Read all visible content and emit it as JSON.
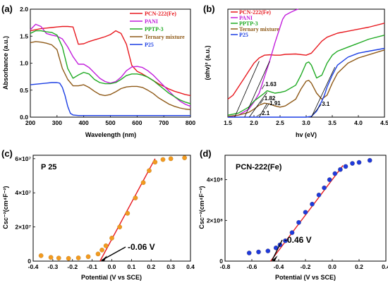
{
  "colors": {
    "pcn": "#e8191f",
    "pani": "#c21fdc",
    "pptp": "#1faa23",
    "ternary": "#8f5a18",
    "p25": "#1c3fe4",
    "dot": "#f29a1f",
    "dot_blue": "#1e3adc",
    "fit": "#e8191f"
  },
  "chart_data": [
    {
      "panel": "(a)",
      "type": "line",
      "xlabel": "Wavelength (nm)",
      "ylabel": "Absorbance (a.u.)",
      "xlim": [
        200,
        800
      ],
      "ylim": [
        0,
        2.0
      ],
      "x_ticks": [
        "200",
        "300",
        "400",
        "500",
        "600",
        "700",
        "800"
      ],
      "y_ticks": [
        "0.0",
        "0.5",
        "1.0",
        "1.5",
        "2.0"
      ],
      "legend_position": "top-right",
      "series": [
        {
          "name": "PCN-222(Fe)",
          "color_key": "pcn",
          "x": [
            200,
            220,
            240,
            260,
            280,
            300,
            320,
            340,
            360,
            380,
            400,
            420,
            440,
            460,
            480,
            500,
            520,
            540,
            560,
            580,
            600,
            620,
            640,
            660,
            680,
            700,
            720,
            740,
            760,
            780,
            800
          ],
          "y": [
            1.6,
            1.62,
            1.64,
            1.65,
            1.66,
            1.67,
            1.68,
            1.68,
            1.67,
            1.35,
            1.36,
            1.4,
            1.43,
            1.46,
            1.49,
            1.53,
            1.6,
            1.55,
            1.35,
            0.96,
            0.85,
            0.8,
            0.74,
            0.68,
            0.62,
            0.57,
            0.52,
            0.48,
            0.45,
            0.42,
            0.4
          ]
        },
        {
          "name": "PANI",
          "color_key": "pani",
          "x": [
            200,
            220,
            240,
            260,
            280,
            300,
            320,
            340,
            360,
            380,
            400,
            420,
            440,
            460,
            480,
            500,
            520,
            540,
            560,
            580,
            600,
            620,
            640,
            660,
            680,
            700,
            720,
            740,
            760,
            780,
            800
          ],
          "y": [
            1.62,
            1.72,
            1.68,
            1.55,
            1.52,
            1.5,
            1.45,
            1.3,
            1.12,
            0.98,
            0.98,
            0.92,
            0.82,
            0.72,
            0.66,
            0.63,
            0.66,
            0.74,
            0.86,
            0.93,
            0.94,
            0.92,
            0.86,
            0.78,
            0.68,
            0.58,
            0.48,
            0.38,
            0.3,
            0.24,
            0.2
          ]
        },
        {
          "name": "PPTP-3",
          "color_key": "pptp",
          "x": [
            200,
            220,
            240,
            260,
            280,
            300,
            320,
            340,
            360,
            380,
            400,
            420,
            440,
            460,
            480,
            500,
            520,
            540,
            560,
            580,
            600,
            620,
            640,
            660,
            680,
            700,
            720,
            740,
            760,
            780,
            800
          ],
          "y": [
            1.55,
            1.6,
            1.6,
            1.58,
            1.57,
            1.52,
            1.3,
            0.9,
            0.72,
            0.78,
            0.83,
            0.8,
            0.7,
            0.64,
            0.62,
            0.62,
            0.64,
            0.7,
            0.77,
            0.8,
            0.8,
            0.78,
            0.74,
            0.68,
            0.6,
            0.52,
            0.44,
            0.38,
            0.32,
            0.28,
            0.25
          ]
        },
        {
          "name": "Ternary mixture",
          "color_key": "ternary",
          "x": [
            200,
            220,
            240,
            260,
            280,
            300,
            320,
            340,
            360,
            380,
            400,
            420,
            440,
            460,
            480,
            500,
            520,
            540,
            560,
            580,
            600,
            620,
            640,
            660,
            680,
            700,
            720,
            740,
            760,
            780,
            800
          ],
          "y": [
            1.38,
            1.4,
            1.39,
            1.37,
            1.34,
            1.25,
            0.9,
            0.7,
            0.58,
            0.58,
            0.6,
            0.55,
            0.48,
            0.42,
            0.4,
            0.42,
            0.47,
            0.53,
            0.56,
            0.57,
            0.57,
            0.55,
            0.5,
            0.44,
            0.36,
            0.3,
            0.24,
            0.2,
            0.17,
            0.15,
            0.14
          ]
        },
        {
          "name": "P25",
          "color_key": "p25",
          "x": [
            200,
            220,
            240,
            260,
            280,
            300,
            310,
            320,
            330,
            340,
            350,
            360,
            380,
            400,
            450,
            500,
            600,
            700,
            800
          ],
          "y": [
            0.6,
            0.61,
            0.62,
            0.63,
            0.64,
            0.64,
            0.63,
            0.55,
            0.4,
            0.2,
            0.07,
            0.04,
            0.03,
            0.03,
            0.03,
            0.03,
            0.03,
            0.03,
            0.03
          ]
        }
      ]
    },
    {
      "panel": "(b)",
      "type": "line",
      "xlabel": "hv (eV)",
      "ylabel": "(αhv)² (a.u.)",
      "xlim": [
        1.5,
        4.5
      ],
      "ylim": [
        0,
        2.7
      ],
      "x_ticks": [
        "1.5",
        "2.0",
        "2.5",
        "3.0",
        "3.5",
        "4.0",
        "4.5"
      ],
      "legend_position": "top-left",
      "annotations": [
        "1.63",
        "1.82",
        "1.91",
        "2.1",
        "3.1"
      ],
      "series": [
        {
          "name": "PCN-222(Fe)",
          "color_key": "pcn",
          "x": [
            1.5,
            1.6,
            1.7,
            1.8,
            1.9,
            2.0,
            2.1,
            2.2,
            2.3,
            2.4,
            2.5,
            2.6,
            2.8,
            3.0,
            3.1,
            3.2,
            3.3,
            3.4,
            3.6,
            3.8,
            4.0,
            4.2,
            4.5
          ],
          "y": [
            0.45,
            0.55,
            0.75,
            0.95,
            1.15,
            1.35,
            1.48,
            1.55,
            1.56,
            1.55,
            1.55,
            1.57,
            1.58,
            1.55,
            1.6,
            1.75,
            1.9,
            2.0,
            2.1,
            2.15,
            2.2,
            2.25,
            2.35
          ]
        },
        {
          "name": "PANI",
          "color_key": "pani",
          "x": [
            1.5,
            1.7,
            1.9,
            2.0,
            2.1,
            2.2,
            2.3,
            2.4,
            2.5,
            2.55,
            2.6,
            2.7,
            2.8,
            2.85
          ],
          "y": [
            0.0,
            0.05,
            0.2,
            0.38,
            0.6,
            1.0,
            1.4,
            1.85,
            2.25,
            2.45,
            2.55,
            2.62,
            2.68,
            2.7
          ]
        },
        {
          "name": "PPTP-3",
          "color_key": "pptp",
          "x": [
            1.5,
            1.7,
            1.9,
            2.0,
            2.1,
            2.2,
            2.25,
            2.3,
            2.4,
            2.5,
            2.6,
            2.8,
            2.9,
            3.0,
            3.05,
            3.1,
            3.2,
            3.3,
            3.4,
            3.5,
            3.6,
            3.8,
            4.0,
            4.2,
            4.5
          ],
          "y": [
            0.05,
            0.1,
            0.25,
            0.4,
            0.5,
            0.6,
            0.66,
            0.64,
            0.6,
            0.62,
            0.65,
            0.8,
            1.05,
            1.35,
            1.38,
            1.3,
            0.98,
            1.05,
            1.35,
            1.55,
            1.65,
            1.75,
            1.85,
            1.95,
            2.05
          ]
        },
        {
          "name": "Ternary mixture",
          "color_key": "ternary",
          "x": [
            1.5,
            1.7,
            1.9,
            2.0,
            2.1,
            2.2,
            2.3,
            2.4,
            2.5,
            2.6,
            2.8,
            2.9,
            3.0,
            3.05,
            3.1,
            3.2,
            3.3,
            3.4,
            3.5,
            3.6,
            3.8,
            4.0,
            4.2,
            4.5
          ],
          "y": [
            0.02,
            0.05,
            0.12,
            0.2,
            0.3,
            0.35,
            0.33,
            0.28,
            0.25,
            0.28,
            0.45,
            0.7,
            0.9,
            0.92,
            0.85,
            0.6,
            0.45,
            0.55,
            0.85,
            1.1,
            1.35,
            1.48,
            1.56,
            1.68
          ]
        },
        {
          "name": "P25",
          "color_key": "p25",
          "x": [
            1.5,
            2.0,
            2.5,
            3.0,
            3.1,
            3.2,
            3.3,
            3.35,
            3.4,
            3.5,
            3.6,
            3.8,
            4.0,
            4.2,
            4.5
          ],
          "y": [
            0.0,
            0.0,
            0.0,
            0.0,
            0.02,
            0.15,
            0.4,
            0.55,
            0.75,
            1.05,
            1.3,
            1.5,
            1.6,
            1.65,
            1.72
          ]
        }
      ]
    },
    {
      "panel": "(c)",
      "type": "scatter",
      "title": "P 25",
      "xlabel": "Potential (V vs SCE)",
      "ylabel": "Csc⁻²(cm⁴F⁻²)",
      "xlim": [
        -0.4,
        0.4
      ],
      "ylim": [
        0,
        62000000.0
      ],
      "x_ticks": [
        "-0.4",
        "-0.3",
        "-0.2",
        "-0.1",
        "0.0",
        "0.1",
        "0.2",
        "0.3",
        "0.4"
      ],
      "y_tick_values": [
        0,
        20000000.0,
        40000000.0,
        60000000.0
      ],
      "y_ticks": [
        "0",
        "2×10⁷",
        "4×10⁷",
        "6×10⁷"
      ],
      "annotation": "-0.06 V",
      "points": {
        "x": [
          -0.36,
          -0.31,
          -0.27,
          -0.22,
          -0.17,
          -0.12,
          -0.07,
          -0.05,
          -0.03,
          0.0,
          0.04,
          0.08,
          0.12,
          0.16,
          0.19,
          0.22,
          0.26,
          0.3,
          0.37
        ],
        "y": [
          3200000.0,
          2200000.0,
          1800000.0,
          1600000.0,
          1900000.0,
          2600000.0,
          4200000.0,
          6500000.0,
          9000000.0,
          13500000.0,
          20000000.0,
          28000000.0,
          37000000.0,
          46000000.0,
          53000000.0,
          58000000.0,
          59500000.0,
          60000000.0,
          60500000.0
        ]
      },
      "fit": {
        "x": [
          -0.06,
          0.22
        ],
        "y": [
          0,
          60000000.0
        ]
      }
    },
    {
      "panel": "(d)",
      "type": "scatter",
      "title": "PCN-222(Fe)",
      "xlabel": "Potential (V vs SCE)",
      "ylabel": "Csc⁻²(cm⁴F⁻²)",
      "xlim": [
        -0.8,
        0.4
      ],
      "ylim": [
        0,
        520000000.0
      ],
      "x_ticks": [
        "-0.8",
        "-0.6",
        "-0.4",
        "-0.2",
        "0.0",
        "0.2",
        "0.4"
      ],
      "y_tick_values": [
        0,
        200000000.0,
        400000000.0
      ],
      "y_ticks": [
        "0",
        "2×10⁸",
        "4×10⁸"
      ],
      "annotation": "-0.46 V",
      "points": {
        "x": [
          -0.62,
          -0.55,
          -0.48,
          -0.42,
          -0.39,
          -0.35,
          -0.3,
          -0.25,
          -0.2,
          -0.15,
          -0.1,
          -0.06,
          -0.02,
          0.02,
          0.06,
          0.1,
          0.15,
          0.2,
          0.28
        ],
        "y": [
          40000000.0,
          45000000.0,
          50000000.0,
          65000000.0,
          80000000.0,
          100000000.0,
          140000000.0,
          190000000.0,
          240000000.0,
          280000000.0,
          325000000.0,
          360000000.0,
          400000000.0,
          430000000.0,
          450000000.0,
          465000000.0,
          480000000.0,
          485000000.0,
          495000000.0
        ]
      },
      "fit": {
        "x": [
          -0.46,
          0.08
        ],
        "y": [
          0,
          470000000.0
        ]
      }
    }
  ]
}
